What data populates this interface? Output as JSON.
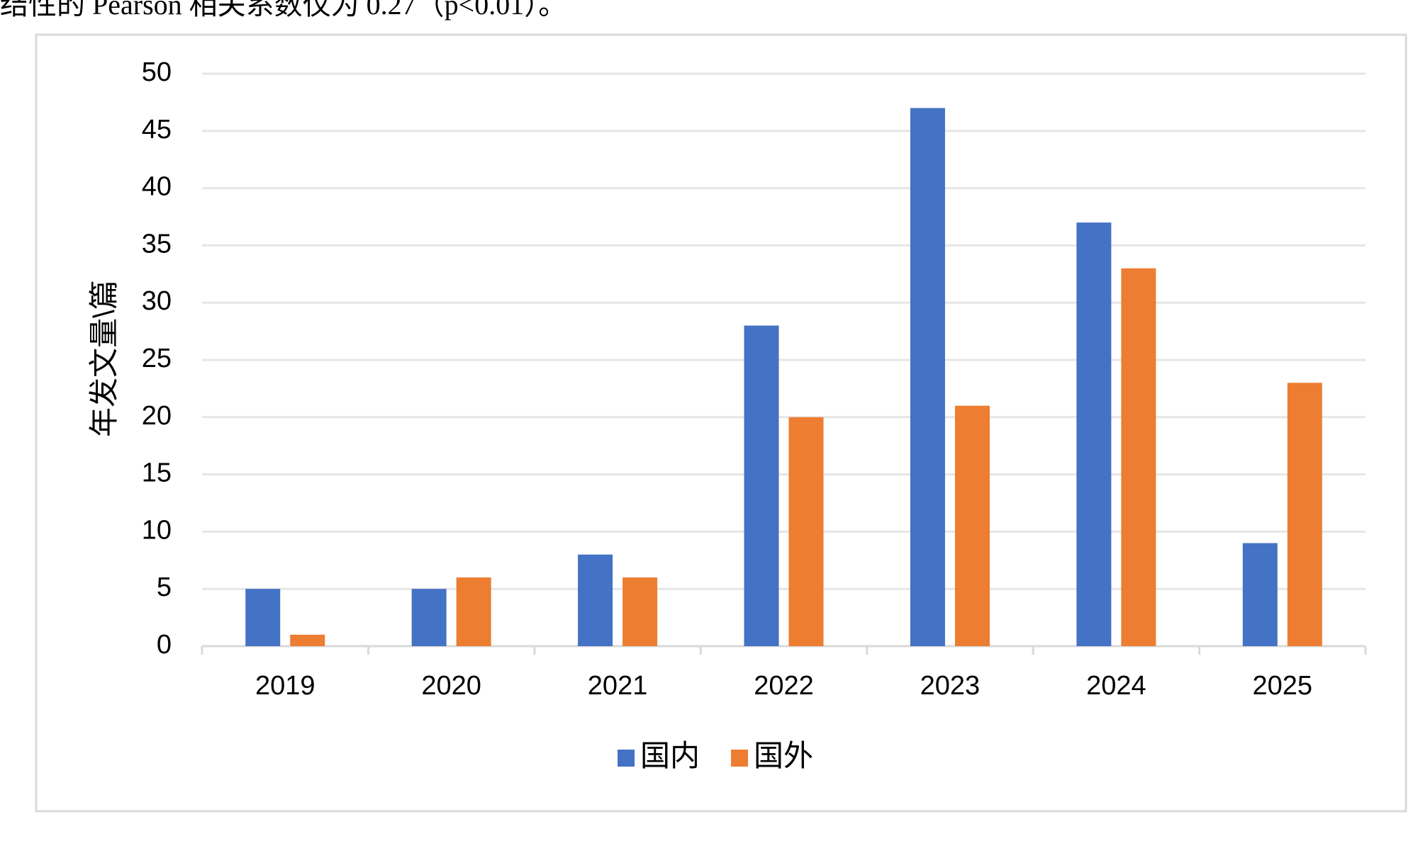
{
  "header_text": "结性的 Pearson 相关系数仅为 0.27（p<0.01）。",
  "chart_data": {
    "type": "bar",
    "y_label": "年发文量\\篇",
    "categories": [
      "2019",
      "2020",
      "2021",
      "2022",
      "2023",
      "2024",
      "2025"
    ],
    "series": [
      {
        "name": "国内",
        "color": "#4472c4",
        "values": [
          5,
          5,
          8,
          28,
          47,
          37,
          9
        ]
      },
      {
        "name": "国外",
        "color": "#ed7d31",
        "values": [
          1,
          6,
          6,
          20,
          21,
          33,
          23
        ]
      }
    ],
    "ylim": [
      0,
      50
    ],
    "yticks": [
      0,
      5,
      10,
      15,
      20,
      25,
      30,
      35,
      40,
      45,
      50
    ],
    "grid": true,
    "legend": "bottom"
  }
}
